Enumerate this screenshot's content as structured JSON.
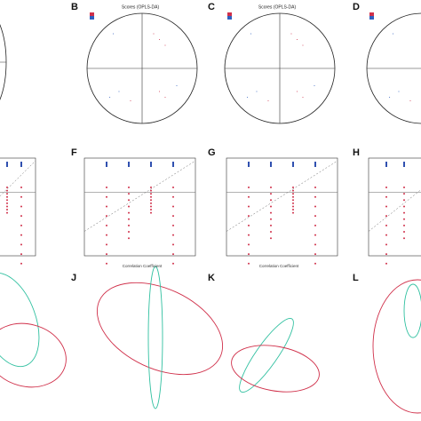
{
  "panels": [
    {
      "label": "B",
      "title": "Scores (OPLS-DA)"
    },
    {
      "label": "C",
      "title": "Scores (OPLS-DA)"
    },
    {
      "label": "D"
    },
    {
      "label": "F",
      "xlabel": "Correlation Coefficient"
    },
    {
      "label": "G",
      "xlabel": "Correlation Coefficient"
    },
    {
      "label": "H"
    },
    {
      "label": "J"
    },
    {
      "label": "K"
    },
    {
      "label": "L"
    }
  ]
}
